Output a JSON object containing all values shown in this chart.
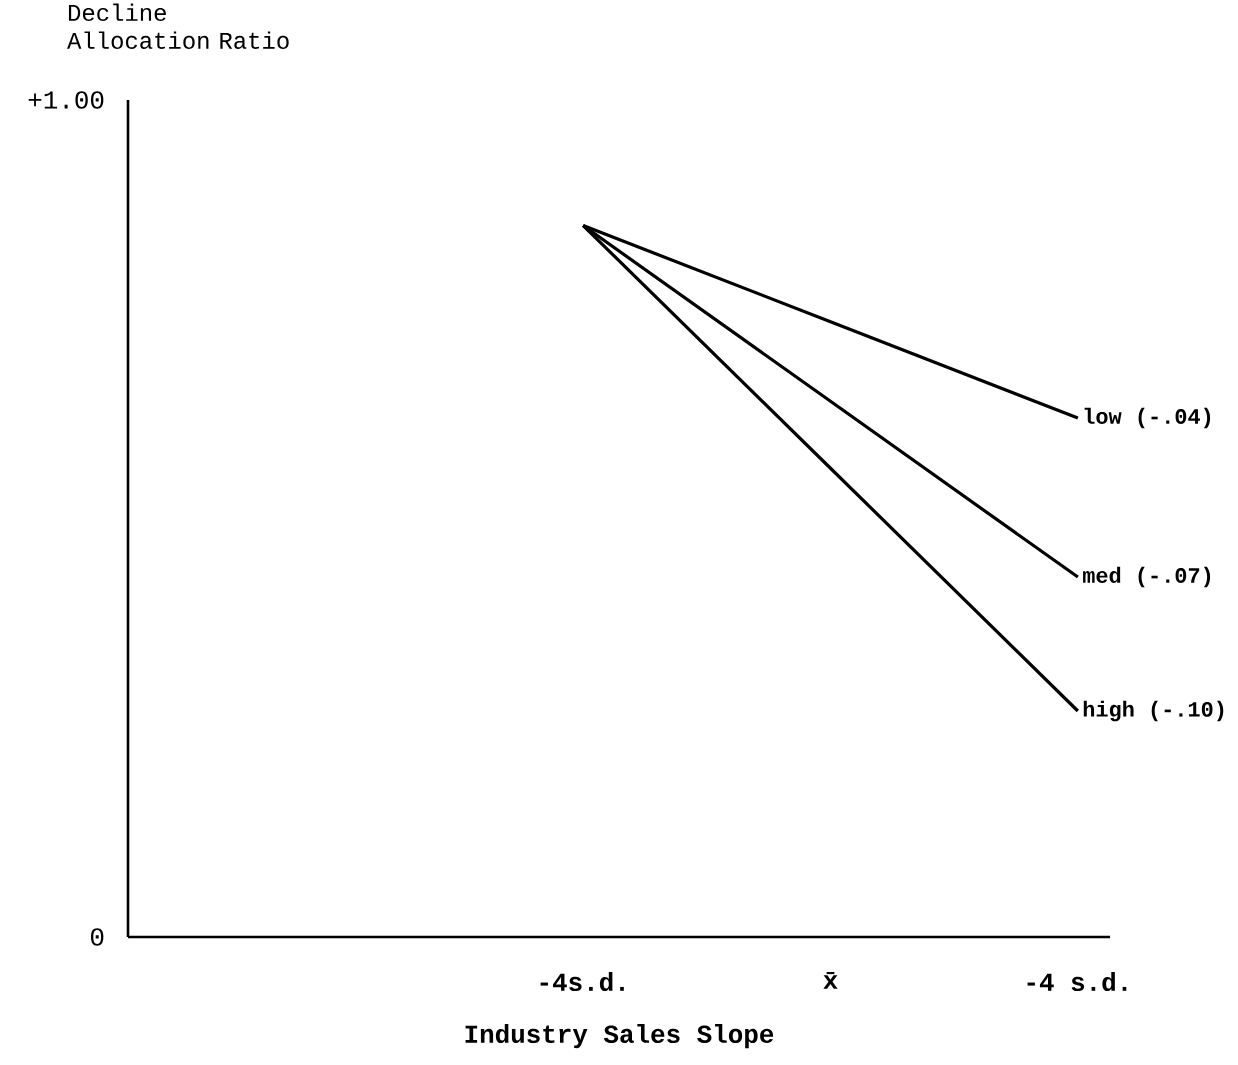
{
  "chart_data": {
    "type": "line",
    "ylabel": "Decline Allocation Ratio",
    "xlabel": "Industry Sales Slope",
    "categories": [
      "-4s.d.",
      "x̄",
      "-4 s.d."
    ],
    "ylim": [
      0,
      1.0
    ],
    "yticks": [
      {
        "value": 0,
        "label": "0"
      },
      {
        "value": 1.0,
        "label": "+1.00"
      }
    ],
    "series": [
      {
        "name": "low (-.04)",
        "color": "#000000",
        "values": [
          0.85,
          0.735,
          0.62
        ]
      },
      {
        "name": "med (-.07)",
        "color": "#000000",
        "values": [
          0.85,
          0.64,
          0.43
        ]
      },
      {
        "name": "high (-.10)",
        "color": "#000000",
        "values": [
          0.85,
          0.56,
          0.27
        ]
      }
    ],
    "grid": false,
    "legend": false,
    "marker": "none",
    "line_style": "solid"
  }
}
